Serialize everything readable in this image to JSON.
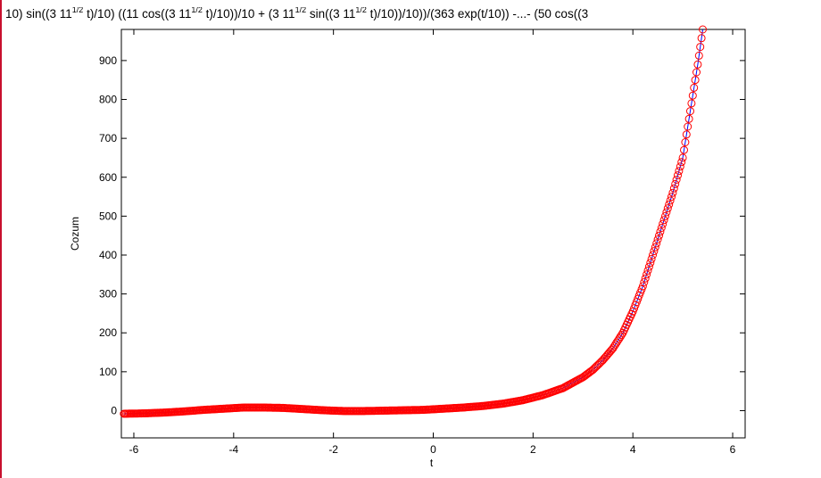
{
  "chart_data": {
    "type": "line",
    "title_parts": [
      {
        "text": "10) sin((3 11",
        "sup": false
      },
      {
        "text": "1/2",
        "sup": true
      },
      {
        "text": " t)/10) ((11 cos((3 11",
        "sup": false
      },
      {
        "text": "1/2",
        "sup": true
      },
      {
        "text": " t)/10))/10 + (3 11",
        "sup": false
      },
      {
        "text": "1/2",
        "sup": true
      },
      {
        "text": " sin((3 11",
        "sup": false
      },
      {
        "text": "1/2",
        "sup": true
      },
      {
        "text": " t)/10))/10))/(363 exp(t/10)) -...- (50 cos((3",
        "sup": false
      }
    ],
    "xlabel": "t",
    "ylabel": "Cozum",
    "xlim": [
      -6.25,
      6.25
    ],
    "ylim": [
      -70,
      980
    ],
    "x_ticks": [
      -6,
      -4,
      -2,
      0,
      2,
      4,
      6
    ],
    "y_ticks": [
      0,
      100,
      200,
      300,
      400,
      500,
      600,
      700,
      800,
      900
    ],
    "grid": false,
    "series": [
      {
        "style": "line",
        "color": "#0000ff",
        "x": [
          -6.2,
          -5.8,
          -5.4,
          -5.0,
          -4.6,
          -4.2,
          -3.8,
          -3.4,
          -3.0,
          -2.6,
          -2.2,
          -1.8,
          -1.4,
          -1.0,
          -0.6,
          -0.2,
          0.2,
          0.6,
          1.0,
          1.4,
          1.8,
          2.2,
          2.6,
          3.0,
          3.2,
          3.4,
          3.6,
          3.8,
          4.0,
          4.2,
          4.4,
          4.6,
          4.8,
          5.0,
          5.1,
          5.2,
          5.3,
          5.4
        ],
        "y": [
          -8,
          -7,
          -5,
          -2,
          2,
          5,
          8,
          8,
          7,
          4,
          1,
          -1,
          -1,
          0,
          1,
          2,
          5,
          8,
          12,
          18,
          27,
          40,
          58,
          86,
          105,
          130,
          160,
          200,
          255,
          320,
          400,
          480,
          560,
          650,
          730,
          810,
          890,
          980
        ]
      },
      {
        "style": "markers",
        "marker": "circle",
        "color": "#ff0000",
        "x": [
          -6.2,
          -5.8,
          -5.4,
          -5.0,
          -4.6,
          -4.2,
          -3.8,
          -3.4,
          -3.0,
          -2.6,
          -2.2,
          -1.8,
          -1.4,
          -1.0,
          -0.6,
          -0.2,
          0.2,
          0.6,
          1.0,
          1.4,
          1.8,
          2.2,
          2.6,
          3.0,
          3.2,
          3.4,
          3.6,
          3.8,
          4.0,
          4.2,
          4.4,
          4.6,
          4.8,
          5.0,
          5.1,
          5.2,
          5.3,
          5.4
        ],
        "y": [
          -8,
          -7,
          -5,
          -2,
          2,
          5,
          8,
          8,
          7,
          4,
          1,
          -1,
          -1,
          0,
          1,
          2,
          5,
          8,
          12,
          18,
          27,
          40,
          58,
          86,
          105,
          130,
          160,
          200,
          255,
          320,
          400,
          480,
          560,
          650,
          730,
          810,
          890,
          980
        ]
      }
    ]
  }
}
